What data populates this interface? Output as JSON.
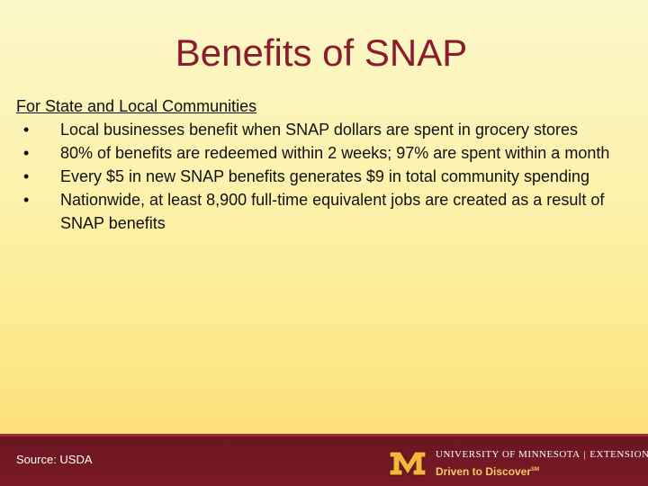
{
  "slide": {
    "title": "Benefits of SNAP",
    "section_heading": "For State and Local Communities",
    "bullets": [
      "Local businesses benefit when SNAP dollars are spent in grocery stores",
      "80% of benefits are redeemed within 2 weeks; 97% are spent within a month",
      "Every $5 in new SNAP benefits generates $9 in total community spending",
      "Nationwide, at least 8,900 full-time equivalent jobs are created as a result of SNAP benefits"
    ],
    "bullet_marker": "•"
  },
  "footer": {
    "source": "Source: USDA",
    "university": "UNIVERSITY OF MINNESOTA",
    "separator": "|",
    "unit": "EXTENSION",
    "tagline": "Driven to Discover",
    "trademark": "SM",
    "logo_icon": "university-m-logo-icon"
  },
  "colors": {
    "title": "#8c1b2c",
    "footer_bg": "#7a1a25",
    "logo_gold": "#f3b73b",
    "tagline": "#f3c96a",
    "background_top": "#fbf7c8",
    "background_bottom": "#fddc70"
  }
}
